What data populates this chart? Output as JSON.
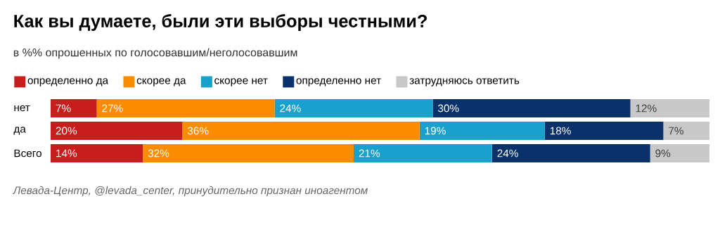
{
  "chart_data": {
    "type": "bar",
    "orientation": "horizontal",
    "stacked": true,
    "title": "Как вы думаете, были эти выборы честными?",
    "subtitle": "в %% опрошенных по голосовавшим/неголосовавшим",
    "categories": [
      "нет",
      "да",
      "Всего"
    ],
    "series": [
      {
        "name": "определенно да",
        "color": "#c71e1d",
        "values": [
          7,
          20,
          14
        ],
        "value_labels": [
          "7%",
          "20%",
          "14%"
        ]
      },
      {
        "name": "скорее да",
        "color": "#fa8c00",
        "values": [
          27,
          36,
          32
        ],
        "value_labels": [
          "27%",
          "36%",
          "32%"
        ]
      },
      {
        "name": "скорее нет",
        "color": "#18a1cd",
        "values": [
          24,
          19,
          21
        ],
        "value_labels": [
          "24%",
          "19%",
          "21%"
        ]
      },
      {
        "name": "определенно нет",
        "color": "#09326b",
        "values": [
          30,
          18,
          24
        ],
        "value_labels": [
          "30%",
          "18%",
          "24%"
        ]
      },
      {
        "name": "затрудняюсь ответить",
        "color": "#c8c8c8",
        "values": [
          12,
          7,
          9
        ],
        "value_labels": [
          "12%",
          "7%",
          "9%"
        ]
      }
    ],
    "tick_labels": "y",
    "legend": "top",
    "annotations": [
      "Левада-Центр, @levada_center, принудительно признан иноагентом"
    ]
  }
}
